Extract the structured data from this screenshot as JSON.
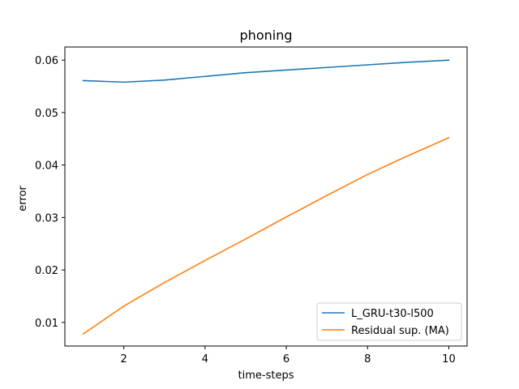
{
  "chart_data": {
    "type": "line",
    "title": "phoning",
    "xlabel": "time-steps",
    "ylabel": "error",
    "xlim": [
      0.55,
      10.45
    ],
    "ylim": [
      0.0055,
      0.0625
    ],
    "xticks": [
      2,
      4,
      6,
      8,
      10
    ],
    "xtick_labels": [
      "2",
      "4",
      "6",
      "8",
      "10"
    ],
    "yticks": [
      0.01,
      0.02,
      0.03,
      0.04,
      0.05,
      0.06
    ],
    "ytick_labels": [
      "0.01",
      "0.02",
      "0.03",
      "0.04",
      "0.05",
      "0.06"
    ],
    "grid": false,
    "legend_position": "lower-right",
    "x": [
      1,
      2,
      3,
      4,
      5,
      6,
      7,
      8,
      9,
      10
    ],
    "series": [
      {
        "name": "L_GRU-t30-l500",
        "color": "#1f77b4",
        "values": [
          0.0561,
          0.0558,
          0.0562,
          0.0569,
          0.0576,
          0.0581,
          0.0586,
          0.0591,
          0.0596,
          0.06
        ]
      },
      {
        "name": "Residual sup. (MA)",
        "color": "#ff7f0e",
        "values": [
          0.0078,
          0.0131,
          0.0176,
          0.0218,
          0.0259,
          0.0301,
          0.0342,
          0.0382,
          0.0418,
          0.0452
        ]
      }
    ]
  }
}
